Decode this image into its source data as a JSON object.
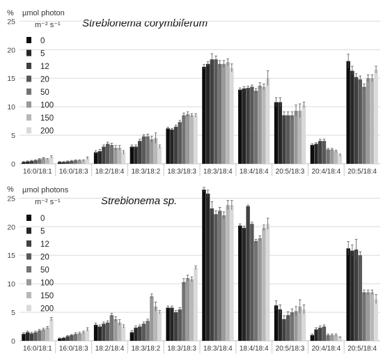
{
  "chart_data": [
    {
      "type": "bar",
      "title": "Streblonema corymbiferum",
      "ylabel": "%",
      "legend_title": [
        "µmol photon",
        "m⁻² s⁻¹"
      ],
      "ylim": [
        0,
        27
      ],
      "yticks": [
        0,
        5,
        10,
        15,
        20,
        25
      ],
      "categories": [
        "16:0/18:1",
        "16:0/18:3",
        "18:2/18:4",
        "18:3/18:2",
        "18:3/18:3",
        "18:3/18:4",
        "18:4/18:4",
        "20:5/18:3",
        "20:4/18:4",
        "20:5/18:4"
      ],
      "series": [
        {
          "name": "0",
          "color": "#0d0d0d",
          "values": [
            0.3,
            0.3,
            2.0,
            3.0,
            6.2,
            17.0,
            13.0,
            10.8,
            3.3,
            18.0
          ],
          "errors": [
            0.1,
            0.1,
            0.3,
            0.3,
            0.2,
            0.4,
            0.3,
            0.8,
            0.2,
            1.2
          ]
        },
        {
          "name": "5",
          "color": "#262626",
          "values": [
            0.4,
            0.3,
            2.2,
            3.0,
            6.0,
            17.5,
            13.2,
            10.8,
            3.5,
            16.3
          ],
          "errors": [
            0.1,
            0.1,
            0.3,
            0.3,
            0.2,
            0.4,
            0.3,
            0.8,
            0.2,
            0.8
          ]
        },
        {
          "name": "12",
          "color": "#404040",
          "values": [
            0.5,
            0.4,
            3.0,
            4.0,
            6.5,
            18.3,
            13.3,
            8.5,
            4.0,
            15.2
          ],
          "errors": [
            0.1,
            0.1,
            0.3,
            0.3,
            0.3,
            1.0,
            0.3,
            0.6,
            0.3,
            0.6
          ]
        },
        {
          "name": "20",
          "color": "#595959",
          "values": [
            0.6,
            0.5,
            3.5,
            4.8,
            7.3,
            18.3,
            13.5,
            8.5,
            4.0,
            14.8
          ],
          "errors": [
            0.1,
            0.1,
            0.3,
            0.3,
            0.3,
            0.6,
            0.3,
            0.6,
            0.3,
            0.6
          ]
        },
        {
          "name": "50",
          "color": "#737373",
          "values": [
            0.8,
            0.6,
            3.3,
            4.8,
            8.5,
            17.5,
            12.8,
            8.5,
            2.5,
            13.5
          ],
          "errors": [
            0.1,
            0.1,
            0.3,
            0.4,
            0.4,
            0.6,
            0.4,
            0.6,
            0.2,
            0.5
          ]
        },
        {
          "name": "100",
          "color": "#999999",
          "values": [
            1.0,
            0.6,
            2.8,
            4.3,
            8.7,
            17.5,
            13.7,
            9.3,
            2.5,
            15.0
          ],
          "errors": [
            0.1,
            0.1,
            0.4,
            0.5,
            0.4,
            0.6,
            0.5,
            1.0,
            0.2,
            0.6
          ]
        },
        {
          "name": "150",
          "color": "#b8b8b8",
          "values": [
            0.8,
            0.6,
            2.8,
            4.5,
            8.5,
            17.8,
            13.5,
            9.3,
            2.2,
            15.0
          ],
          "errors": [
            0.1,
            0.1,
            0.4,
            0.9,
            0.3,
            0.6,
            0.5,
            1.2,
            0.2,
            0.6
          ]
        },
        {
          "name": "200",
          "color": "#d9d9d9",
          "values": [
            1.2,
            1.0,
            2.0,
            3.0,
            8.5,
            16.8,
            15.0,
            10.3,
            1.5,
            16.5
          ],
          "errors": [
            0.2,
            0.2,
            0.3,
            0.3,
            0.3,
            0.7,
            1.3,
            0.5,
            0.2,
            0.6
          ]
        }
      ]
    },
    {
      "type": "bar",
      "title": "Streblonema sp.",
      "ylabel": "%",
      "legend_title": [
        "µmol photons",
        "m⁻² s⁻¹"
      ],
      "ylim": [
        0,
        27
      ],
      "yticks": [
        0,
        5,
        10,
        15,
        20,
        25
      ],
      "categories": [
        "16:0/18:1",
        "16:0/18:3",
        "18:2/18:4",
        "18:3/18:2",
        "18:3/18:3",
        "18:3/18:4",
        "18:4/18:4",
        "20:5/18:3",
        "20:4/18:4",
        "20:5/18:4"
      ],
      "series": [
        {
          "name": "0",
          "color": "#0d0d0d",
          "values": [
            1.2,
            0.4,
            2.8,
            1.5,
            5.8,
            26.5,
            20.2,
            6.2,
            1.0,
            16.2
          ],
          "errors": [
            0.2,
            0.1,
            0.3,
            0.3,
            0.3,
            0.4,
            0.3,
            0.8,
            0.2,
            1.2
          ]
        },
        {
          "name": "5",
          "color": "#262626",
          "values": [
            1.5,
            0.5,
            2.5,
            2.3,
            5.8,
            25.8,
            19.8,
            5.5,
            2.0,
            15.8
          ],
          "errors": [
            0.2,
            0.1,
            0.3,
            0.3,
            0.3,
            0.6,
            0.3,
            0.8,
            0.3,
            1.0
          ]
        },
        {
          "name": "12",
          "color": "#404040",
          "values": [
            1.3,
            0.8,
            3.0,
            2.5,
            5.0,
            23.2,
            23.6,
            3.8,
            2.3,
            16.0
          ],
          "errors": [
            0.2,
            0.1,
            0.3,
            0.3,
            0.3,
            1.2,
            0.2,
            0.6,
            0.3,
            1.8
          ]
        },
        {
          "name": "20",
          "color": "#595959",
          "values": [
            1.5,
            1.0,
            3.2,
            3.0,
            5.5,
            22.2,
            20.5,
            4.5,
            2.5,
            15.0
          ],
          "errors": [
            0.2,
            0.1,
            0.3,
            0.3,
            0.3,
            0.6,
            0.3,
            0.6,
            0.3,
            0.6
          ]
        },
        {
          "name": "50",
          "color": "#737373",
          "values": [
            1.8,
            1.2,
            4.5,
            3.5,
            10.3,
            22.8,
            17.5,
            5.0,
            1.0,
            8.5
          ],
          "errors": [
            0.2,
            0.2,
            0.3,
            0.3,
            0.6,
            0.6,
            0.3,
            0.6,
            0.2,
            0.4
          ]
        },
        {
          "name": "100",
          "color": "#999999",
          "values": [
            2.0,
            1.3,
            3.8,
            7.8,
            11.0,
            22.0,
            18.0,
            5.2,
            1.0,
            8.5
          ],
          "errors": [
            0.2,
            0.2,
            0.4,
            0.4,
            0.5,
            0.6,
            0.4,
            0.8,
            0.2,
            0.4
          ]
        },
        {
          "name": "150",
          "color": "#b8b8b8",
          "values": [
            2.3,
            1.5,
            3.2,
            6.0,
            10.8,
            23.8,
            19.8,
            6.0,
            1.0,
            8.5
          ],
          "errors": [
            0.2,
            0.2,
            0.5,
            0.8,
            0.4,
            0.8,
            0.5,
            1.2,
            0.2,
            0.4
          ]
        },
        {
          "name": "200",
          "color": "#d9d9d9",
          "values": [
            3.8,
            2.0,
            2.5,
            5.0,
            12.8,
            23.8,
            20.5,
            5.5,
            0.6,
            7.3
          ],
          "errors": [
            0.3,
            0.3,
            0.3,
            0.3,
            0.3,
            0.8,
            1.0,
            0.8,
            0.1,
            0.8
          ]
        }
      ]
    }
  ]
}
